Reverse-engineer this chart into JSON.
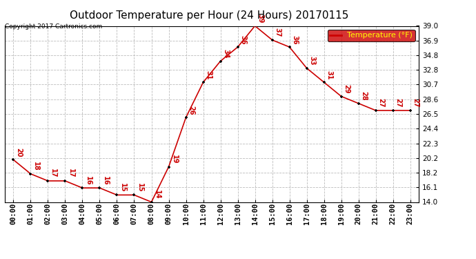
{
  "title": "Outdoor Temperature per Hour (24 Hours) 20170115",
  "copyright": "Copyright 2017 Cartronics.com",
  "legend_label": "Temperature (°F)",
  "hours": [
    0,
    1,
    2,
    3,
    4,
    5,
    6,
    7,
    8,
    9,
    10,
    11,
    12,
    13,
    14,
    15,
    16,
    17,
    18,
    19,
    20,
    21,
    22,
    23
  ],
  "temps": [
    20,
    18,
    17,
    17,
    16,
    16,
    15,
    15,
    14,
    19,
    26,
    31,
    34,
    36,
    39,
    37,
    36,
    33,
    31,
    29,
    28,
    27,
    27,
    27
  ],
  "ylim": [
    14.0,
    39.0
  ],
  "yticks": [
    14.0,
    16.1,
    18.2,
    20.2,
    22.3,
    24.4,
    26.5,
    28.6,
    30.7,
    32.8,
    34.8,
    36.9,
    39.0
  ],
  "line_color": "#cc0000",
  "marker_color": "#000000",
  "label_color": "#cc0000",
  "background_color": "#ffffff",
  "grid_color": "#bbbbbb",
  "legend_bg": "#cc0000",
  "legend_text_color": "#ffff00",
  "title_fontsize": 11,
  "tick_fontsize": 7.5
}
